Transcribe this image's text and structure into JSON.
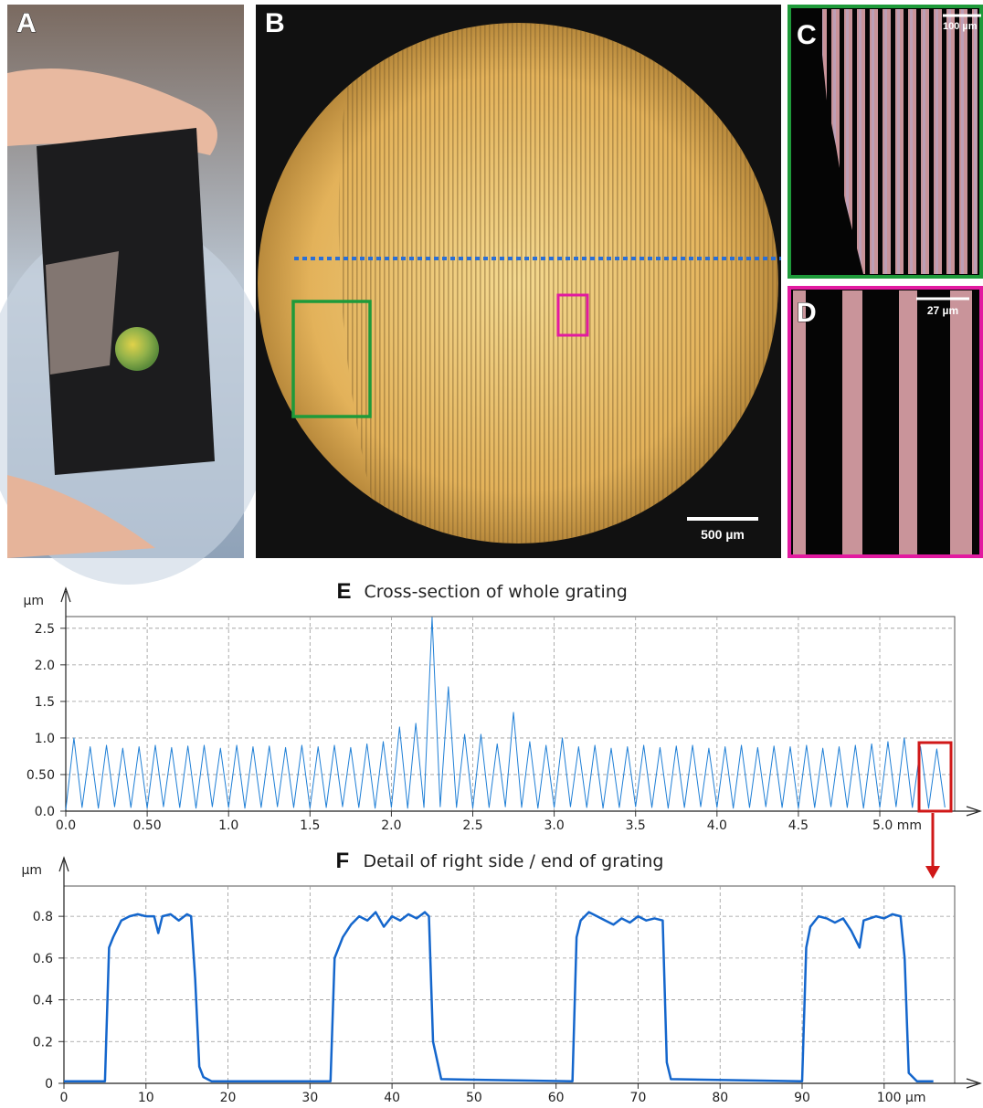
{
  "panels": {
    "A": {
      "label": "A"
    },
    "B": {
      "label": "B",
      "scale_bar": "500 µm"
    },
    "C": {
      "label": "C",
      "scale_bar": "100 µm"
    },
    "D": {
      "label": "D",
      "scale_bar": "27 µm"
    }
  },
  "chart_data": [
    {
      "type": "line",
      "panel_label": "E",
      "title": "Cross-section of whole grating",
      "ylabel": "µm",
      "color": "#1f7fd6",
      "grid": true,
      "xlim": [
        0,
        5.46
      ],
      "ylim": [
        0,
        2.66
      ],
      "xticks": [
        {
          "value": 0,
          "label": "0.0"
        },
        {
          "value": 0.5,
          "label": "0.50"
        },
        {
          "value": 1,
          "label": "1.0"
        },
        1.5,
        {
          "value": 2,
          "label": "2.0"
        },
        2.5,
        {
          "value": 3,
          "label": "3.0"
        },
        3.5,
        {
          "value": 4,
          "label": "4.0"
        },
        4.5,
        {
          "value": 5,
          "label": "5.0 mm"
        }
      ],
      "yticks": [
        {
          "value": 0,
          "label": "0.0"
        },
        {
          "value": 0.5,
          "label": "0.50"
        },
        {
          "value": 1,
          "label": "1.0"
        },
        1.5,
        {
          "value": 2,
          "label": "2.0"
        },
        2.5
      ],
      "x": [
        0,
        0.05,
        0.1,
        0.15,
        0.2,
        0.25,
        0.3,
        0.35,
        0.4,
        0.45,
        0.5,
        0.55,
        0.6,
        0.65,
        0.7,
        0.75,
        0.8,
        0.85,
        0.9,
        0.95,
        1,
        1.05,
        1.1,
        1.15,
        1.2,
        1.25,
        1.3,
        1.35,
        1.4,
        1.45,
        1.5,
        1.55,
        1.6,
        1.65,
        1.7,
        1.75,
        1.8,
        1.85,
        1.9,
        1.95,
        2,
        2.05,
        2.1,
        2.15,
        2.2,
        2.25,
        2.3,
        2.35,
        2.4,
        2.45,
        2.5,
        2.55,
        2.6,
        2.65,
        2.7,
        2.75,
        2.8,
        2.85,
        2.9,
        2.95,
        3,
        3.05,
        3.1,
        3.15,
        3.2,
        3.25,
        3.3,
        3.35,
        3.4,
        3.45,
        3.5,
        3.55,
        3.6,
        3.65,
        3.7,
        3.75,
        3.8,
        3.85,
        3.9,
        3.95,
        4,
        4.05,
        4.1,
        4.15,
        4.2,
        4.25,
        4.3,
        4.35,
        4.4,
        4.45,
        4.5,
        4.55,
        4.6,
        4.65,
        4.7,
        4.75,
        4.8,
        4.85,
        4.9,
        4.95,
        5,
        5.05,
        5.1,
        5.15,
        5.2,
        5.25,
        5.3,
        5.35,
        5.4
      ],
      "values": [
        0.02,
        1.0,
        0.05,
        0.88,
        0.04,
        0.9,
        0.06,
        0.86,
        0.05,
        0.88,
        0.04,
        0.9,
        0.06,
        0.87,
        0.05,
        0.89,
        0.04,
        0.9,
        0.06,
        0.86,
        0.05,
        0.9,
        0.04,
        0.88,
        0.05,
        0.89,
        0.06,
        0.87,
        0.05,
        0.9,
        0.04,
        0.88,
        0.05,
        0.9,
        0.06,
        0.87,
        0.05,
        0.92,
        0.04,
        0.95,
        0.05,
        1.15,
        0.04,
        1.2,
        0.05,
        2.65,
        0.06,
        1.7,
        0.05,
        1.05,
        0.04,
        1.05,
        0.05,
        0.92,
        0.06,
        1.35,
        0.05,
        0.95,
        0.04,
        0.9,
        0.05,
        1.0,
        0.06,
        0.88,
        0.05,
        0.9,
        0.04,
        0.86,
        0.05,
        0.88,
        0.06,
        0.9,
        0.05,
        0.87,
        0.04,
        0.89,
        0.05,
        0.9,
        0.06,
        0.86,
        0.05,
        0.88,
        0.04,
        0.9,
        0.05,
        0.87,
        0.06,
        0.89,
        0.05,
        0.88,
        0.04,
        0.9,
        0.05,
        0.86,
        0.06,
        0.88,
        0.05,
        0.9,
        0.04,
        0.92,
        0.05,
        0.95,
        0.06,
        1.0,
        0.05,
        0.88,
        0.04,
        0.85,
        0.05
      ]
    },
    {
      "type": "line",
      "panel_label": "F",
      "title": "Detail of right side / end of grating",
      "ylabel": "µm",
      "color": "#1466cc",
      "grid": true,
      "xlim": [
        0,
        108.6
      ],
      "ylim": [
        0,
        0.945
      ],
      "xticks": [
        0,
        10,
        20,
        30,
        40,
        50,
        60,
        70,
        80,
        90,
        {
          "value": 100,
          "label": "100 µm"
        }
      ],
      "yticks": [
        0,
        0.2,
        0.4,
        0.6,
        0.8
      ],
      "x": [
        0,
        5,
        5.5,
        6,
        7,
        8,
        9,
        10,
        11,
        11.5,
        12,
        13,
        14,
        15,
        15.5,
        16,
        16.5,
        17,
        18,
        32.5,
        33,
        34,
        35,
        36,
        37,
        38,
        39,
        40,
        41,
        42,
        43,
        44,
        44.5,
        45,
        46,
        62,
        62.5,
        63,
        64,
        65,
        66,
        67,
        68,
        69,
        70,
        71,
        72,
        73,
        73.5,
        74,
        90,
        90.5,
        91,
        92,
        93,
        94,
        95,
        96,
        97,
        97.5,
        99,
        100,
        101,
        102,
        102.5,
        103,
        104,
        106
      ],
      "values": [
        0.01,
        0.01,
        0.65,
        0.7,
        0.78,
        0.8,
        0.81,
        0.8,
        0.8,
        0.72,
        0.8,
        0.81,
        0.78,
        0.81,
        0.8,
        0.5,
        0.08,
        0.03,
        0.01,
        0.01,
        0.6,
        0.7,
        0.76,
        0.8,
        0.78,
        0.82,
        0.75,
        0.8,
        0.78,
        0.81,
        0.79,
        0.82,
        0.8,
        0.2,
        0.02,
        0.01,
        0.7,
        0.78,
        0.82,
        0.8,
        0.78,
        0.76,
        0.79,
        0.77,
        0.8,
        0.78,
        0.79,
        0.78,
        0.1,
        0.02,
        0.01,
        0.65,
        0.75,
        0.8,
        0.79,
        0.77,
        0.79,
        0.73,
        0.65,
        0.78,
        0.8,
        0.79,
        0.81,
        0.8,
        0.6,
        0.05,
        0.01,
        0.01
      ]
    }
  ]
}
